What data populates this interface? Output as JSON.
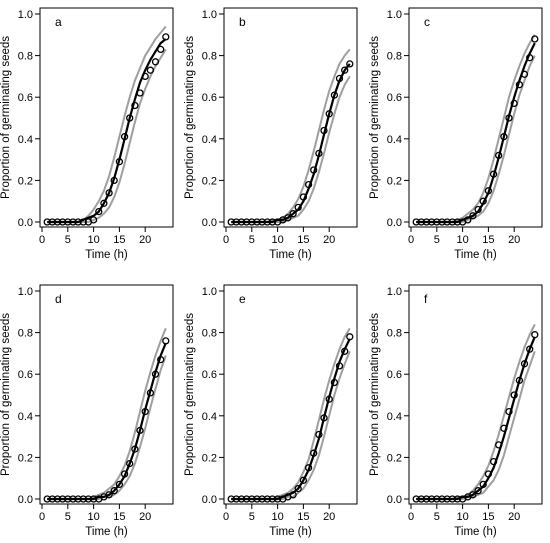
{
  "chart_data": [
    {
      "type": "scatter",
      "panel_label": "a",
      "xlabel": "Time (h)",
      "ylabel": "Proportion of germinating seeds",
      "xlim": [
        0,
        25
      ],
      "ylim": [
        0,
        1.0
      ],
      "xticks": [
        "0",
        "5",
        "10",
        "15",
        "20"
      ],
      "yticks": [
        "0.0",
        "0.2",
        "0.4",
        "0.6",
        "0.8",
        "1.0"
      ],
      "grid": false,
      "x": [
        1,
        2,
        3,
        4,
        5,
        6,
        7,
        8,
        9,
        10,
        11,
        12,
        13,
        14,
        15,
        16,
        17,
        18,
        19,
        20,
        21,
        22,
        23,
        24
      ],
      "observed": [
        0,
        0,
        0,
        0,
        0,
        0,
        0,
        0,
        0,
        0.01,
        0.05,
        0.09,
        0.14,
        0.2,
        0.29,
        0.41,
        0.5,
        0.56,
        0.62,
        0.7,
        0.73,
        0.77,
        0.83,
        0.89
      ],
      "fitted": [
        0,
        0,
        0,
        0,
        0,
        0,
        0,
        0.01,
        0.02,
        0.03,
        0.05,
        0.09,
        0.14,
        0.21,
        0.3,
        0.4,
        0.5,
        0.59,
        0.67,
        0.73,
        0.78,
        0.82,
        0.86,
        0.88
      ],
      "lower": [
        0,
        0,
        0,
        0,
        0,
        0,
        0,
        0,
        0,
        0.01,
        0.02,
        0.04,
        0.07,
        0.12,
        0.19,
        0.28,
        0.38,
        0.48,
        0.57,
        0.64,
        0.7,
        0.75,
        0.79,
        0.83
      ],
      "upper": [
        0,
        0,
        0,
        0,
        0,
        0,
        0,
        0.01,
        0.03,
        0.06,
        0.1,
        0.15,
        0.22,
        0.31,
        0.41,
        0.51,
        0.6,
        0.68,
        0.74,
        0.8,
        0.84,
        0.88,
        0.91,
        0.94
      ]
    },
    {
      "type": "scatter",
      "panel_label": "b",
      "xlabel": "Time (h)",
      "ylabel": "Proportion of germinating seeds",
      "xlim": [
        0,
        25
      ],
      "ylim": [
        0,
        1.0
      ],
      "xticks": [
        "0",
        "5",
        "10",
        "15",
        "20"
      ],
      "yticks": [
        "0.0",
        "0.2",
        "0.4",
        "0.6",
        "0.8",
        "1.0"
      ],
      "grid": false,
      "x": [
        1,
        2,
        3,
        4,
        5,
        6,
        7,
        8,
        9,
        10,
        11,
        12,
        13,
        14,
        15,
        16,
        17,
        18,
        19,
        20,
        21,
        22,
        23,
        24
      ],
      "observed": [
        0,
        0,
        0,
        0,
        0,
        0,
        0,
        0,
        0,
        0,
        0.01,
        0.02,
        0.04,
        0.07,
        0.12,
        0.18,
        0.25,
        0.33,
        0.44,
        0.52,
        0.61,
        0.69,
        0.73,
        0.76
      ],
      "fitted": [
        0,
        0,
        0,
        0,
        0,
        0,
        0,
        0,
        0,
        0.01,
        0.01,
        0.02,
        0.04,
        0.06,
        0.1,
        0.16,
        0.23,
        0.32,
        0.42,
        0.52,
        0.61,
        0.68,
        0.73,
        0.76
      ],
      "lower": [
        0,
        0,
        0,
        0,
        0,
        0,
        0,
        0,
        0,
        0,
        0,
        0.01,
        0.02,
        0.03,
        0.06,
        0.1,
        0.16,
        0.24,
        0.33,
        0.43,
        0.52,
        0.6,
        0.66,
        0.7
      ],
      "upper": [
        0,
        0,
        0,
        0,
        0,
        0,
        0,
        0,
        0.01,
        0.01,
        0.02,
        0.04,
        0.07,
        0.11,
        0.17,
        0.25,
        0.34,
        0.44,
        0.54,
        0.63,
        0.7,
        0.76,
        0.8,
        0.83
      ]
    },
    {
      "type": "scatter",
      "panel_label": "c",
      "xlabel": "Time (h)",
      "ylabel": "Proportion of germinating seeds",
      "xlim": [
        0,
        25
      ],
      "ylim": [
        0,
        1.0
      ],
      "xticks": [
        "0",
        "5",
        "10",
        "15",
        "20"
      ],
      "yticks": [
        "0.0",
        "0.2",
        "0.4",
        "0.6",
        "0.8",
        "1.0"
      ],
      "grid": false,
      "x": [
        1,
        2,
        3,
        4,
        5,
        6,
        7,
        8,
        9,
        10,
        11,
        12,
        13,
        14,
        15,
        16,
        17,
        18,
        19,
        20,
        21,
        22,
        23,
        24
      ],
      "observed": [
        0,
        0,
        0,
        0,
        0,
        0,
        0,
        0,
        0,
        0,
        0.01,
        0.03,
        0.06,
        0.1,
        0.15,
        0.23,
        0.32,
        0.41,
        0.5,
        0.57,
        0.66,
        0.71,
        0.79,
        0.88
      ],
      "fitted": [
        0,
        0,
        0,
        0,
        0,
        0,
        0,
        0,
        0,
        0.01,
        0.02,
        0.03,
        0.05,
        0.09,
        0.14,
        0.22,
        0.31,
        0.41,
        0.51,
        0.6,
        0.68,
        0.75,
        0.81,
        0.86
      ],
      "lower": [
        0,
        0,
        0,
        0,
        0,
        0,
        0,
        0,
        0,
        0,
        0.01,
        0.02,
        0.03,
        0.05,
        0.09,
        0.15,
        0.23,
        0.32,
        0.42,
        0.52,
        0.61,
        0.68,
        0.75,
        0.8
      ],
      "upper": [
        0,
        0,
        0,
        0,
        0,
        0,
        0,
        0,
        0.01,
        0.02,
        0.04,
        0.06,
        0.09,
        0.14,
        0.21,
        0.3,
        0.4,
        0.5,
        0.6,
        0.68,
        0.75,
        0.81,
        0.86,
        0.9
      ]
    },
    {
      "type": "scatter",
      "panel_label": "d",
      "xlabel": "Time (h)",
      "ylabel": "Proportion of germinating seeds",
      "xlim": [
        0,
        25
      ],
      "ylim": [
        0,
        1.0
      ],
      "xticks": [
        "0",
        "5",
        "10",
        "15",
        "20"
      ],
      "yticks": [
        "0.0",
        "0.2",
        "0.4",
        "0.6",
        "0.8",
        "1.0"
      ],
      "grid": false,
      "x": [
        1,
        2,
        3,
        4,
        5,
        6,
        7,
        8,
        9,
        10,
        11,
        12,
        13,
        14,
        15,
        16,
        17,
        18,
        19,
        20,
        21,
        22,
        23,
        24
      ],
      "observed": [
        0,
        0,
        0,
        0,
        0,
        0,
        0,
        0,
        0,
        0,
        0,
        0.01,
        0.02,
        0.04,
        0.07,
        0.12,
        0.17,
        0.24,
        0.33,
        0.42,
        0.51,
        0.6,
        0.67,
        0.76
      ],
      "fitted": [
        0,
        0,
        0,
        0,
        0,
        0,
        0,
        0,
        0,
        0,
        0.01,
        0.01,
        0.02,
        0.04,
        0.07,
        0.11,
        0.17,
        0.24,
        0.33,
        0.43,
        0.52,
        0.61,
        0.69,
        0.75
      ],
      "lower": [
        0,
        0,
        0,
        0,
        0,
        0,
        0,
        0,
        0,
        0,
        0,
        0.01,
        0.01,
        0.02,
        0.04,
        0.07,
        0.11,
        0.17,
        0.25,
        0.34,
        0.44,
        0.53,
        0.62,
        0.69
      ],
      "upper": [
        0,
        0,
        0,
        0,
        0,
        0,
        0,
        0,
        0,
        0.01,
        0.02,
        0.03,
        0.05,
        0.07,
        0.11,
        0.16,
        0.23,
        0.32,
        0.42,
        0.52,
        0.61,
        0.69,
        0.76,
        0.82
      ]
    },
    {
      "type": "scatter",
      "panel_label": "e",
      "xlabel": "Time (h)",
      "ylabel": "Proportion of germinating seeds",
      "xlim": [
        0,
        25
      ],
      "ylim": [
        0,
        1.0
      ],
      "xticks": [
        "0",
        "5",
        "10",
        "15",
        "20"
      ],
      "yticks": [
        "0.0",
        "0.2",
        "0.4",
        "0.6",
        "0.8",
        "1.0"
      ],
      "grid": false,
      "x": [
        1,
        2,
        3,
        4,
        5,
        6,
        7,
        8,
        9,
        10,
        11,
        12,
        13,
        14,
        15,
        16,
        17,
        18,
        19,
        20,
        21,
        22,
        23,
        24
      ],
      "observed": [
        0,
        0,
        0,
        0,
        0,
        0,
        0,
        0,
        0,
        0,
        0,
        0.01,
        0.02,
        0.05,
        0.09,
        0.15,
        0.22,
        0.31,
        0.39,
        0.48,
        0.56,
        0.64,
        0.71,
        0.78
      ],
      "fitted": [
        0,
        0,
        0,
        0,
        0,
        0,
        0,
        0,
        0,
        0,
        0.01,
        0.02,
        0.03,
        0.05,
        0.09,
        0.14,
        0.21,
        0.29,
        0.39,
        0.49,
        0.58,
        0.66,
        0.72,
        0.77
      ],
      "lower": [
        0,
        0,
        0,
        0,
        0,
        0,
        0,
        0,
        0,
        0,
        0,
        0.01,
        0.01,
        0.03,
        0.05,
        0.09,
        0.14,
        0.21,
        0.3,
        0.4,
        0.5,
        0.58,
        0.65,
        0.71
      ],
      "upper": [
        0,
        0,
        0,
        0,
        0,
        0,
        0,
        0,
        0,
        0.01,
        0.02,
        0.03,
        0.05,
        0.08,
        0.13,
        0.19,
        0.28,
        0.38,
        0.48,
        0.57,
        0.65,
        0.72,
        0.78,
        0.82
      ]
    },
    {
      "type": "scatter",
      "panel_label": "f",
      "xlabel": "Time (h)",
      "ylabel": "Proportion of germinating seeds",
      "xlim": [
        0,
        25
      ],
      "ylim": [
        0,
        1.0
      ],
      "xticks": [
        "0",
        "5",
        "10",
        "15",
        "20"
      ],
      "yticks": [
        "0.0",
        "0.2",
        "0.4",
        "0.6",
        "0.8",
        "1.0"
      ],
      "grid": false,
      "x": [
        1,
        2,
        3,
        4,
        5,
        6,
        7,
        8,
        9,
        10,
        11,
        12,
        13,
        14,
        15,
        16,
        17,
        18,
        19,
        20,
        21,
        22,
        23,
        24
      ],
      "observed": [
        0,
        0,
        0,
        0,
        0,
        0,
        0,
        0,
        0,
        0,
        0.01,
        0.02,
        0.04,
        0.07,
        0.12,
        0.18,
        0.26,
        0.34,
        0.42,
        0.5,
        0.57,
        0.65,
        0.72,
        0.79
      ],
      "fitted": [
        0,
        0,
        0,
        0,
        0,
        0,
        0,
        0,
        0,
        0.01,
        0.01,
        0.02,
        0.04,
        0.06,
        0.1,
        0.15,
        0.22,
        0.3,
        0.39,
        0.48,
        0.57,
        0.65,
        0.72,
        0.78
      ],
      "lower": [
        0,
        0,
        0,
        0,
        0,
        0,
        0,
        0,
        0,
        0,
        0.01,
        0.01,
        0.02,
        0.03,
        0.06,
        0.09,
        0.14,
        0.21,
        0.3,
        0.39,
        0.48,
        0.57,
        0.64,
        0.71
      ],
      "upper": [
        0,
        0,
        0,
        0,
        0,
        0,
        0,
        0,
        0.01,
        0.01,
        0.02,
        0.04,
        0.07,
        0.11,
        0.16,
        0.23,
        0.31,
        0.4,
        0.49,
        0.58,
        0.66,
        0.73,
        0.79,
        0.84
      ]
    }
  ]
}
